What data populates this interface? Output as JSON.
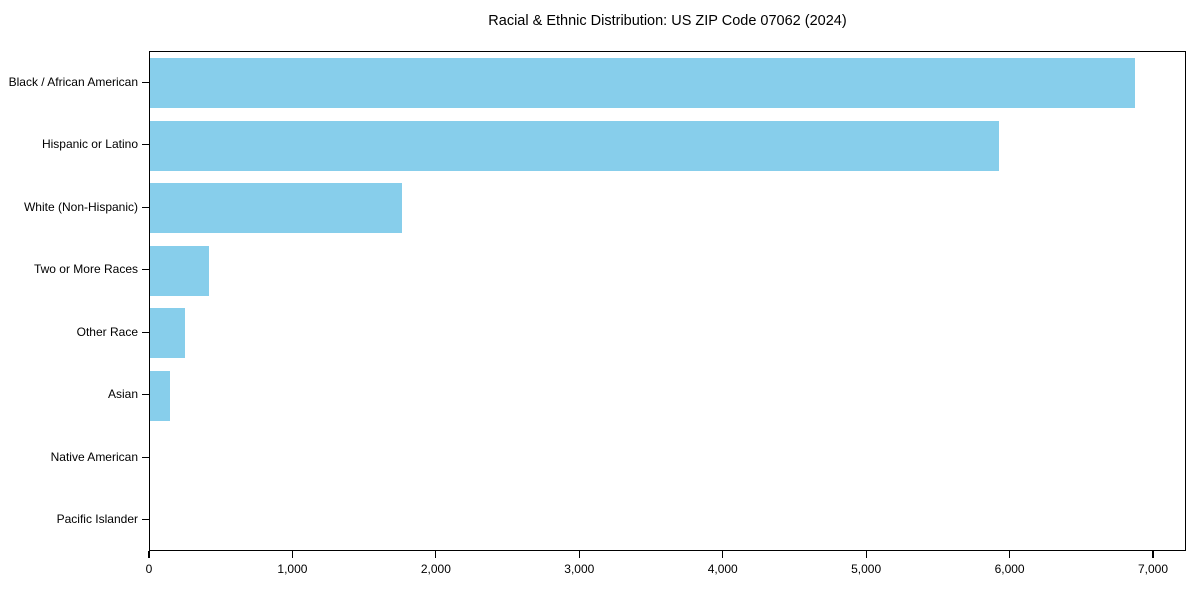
{
  "chart_data": {
    "type": "bar",
    "orientation": "horizontal",
    "title": "Racial & Ethnic Distribution: US ZIP Code 07062 (2024)",
    "categories": [
      "Black / African American",
      "Hispanic or Latino",
      "White (Non-Hispanic)",
      "Two or More Races",
      "Other Race",
      "Asian",
      "Native American",
      "Pacific Islander"
    ],
    "values": [
      6880,
      5930,
      1760,
      410,
      245,
      140,
      0,
      0
    ],
    "xlabel": "",
    "ylabel": "",
    "xlim": [
      0,
      7230
    ],
    "x_ticks": [
      0,
      1000,
      2000,
      3000,
      4000,
      5000,
      6000,
      7000
    ],
    "x_tick_labels": [
      "0",
      "1,000",
      "2,000",
      "3,000",
      "4,000",
      "5,000",
      "6,000",
      "7,000"
    ],
    "bar_color": "#87CEEB",
    "axis_color": "#000000",
    "grid": false,
    "legend": null
  }
}
